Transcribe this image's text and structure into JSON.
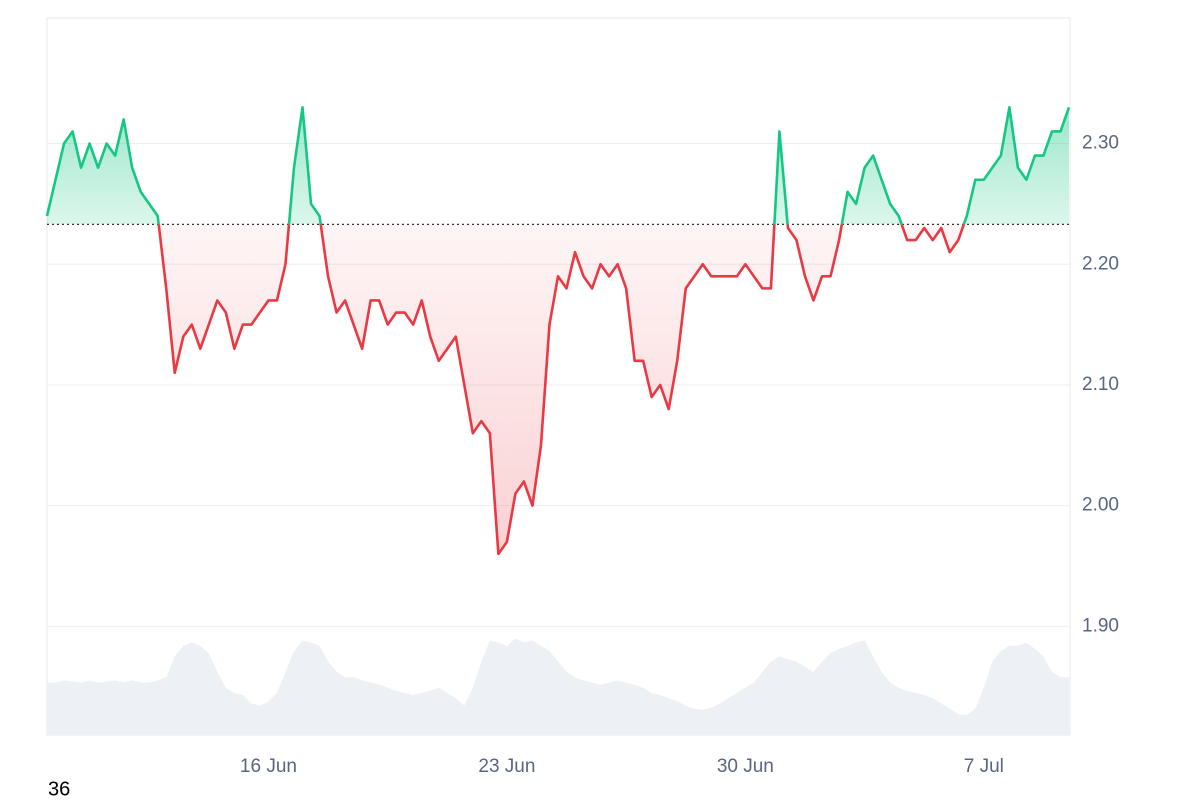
{
  "chart_data": {
    "type": "line",
    "categories": [
      null,
      null,
      null,
      null,
      null,
      null,
      null,
      null,
      null,
      null,
      null,
      null,
      null,
      null,
      null,
      null,
      null,
      null,
      null,
      null,
      null,
      null,
      null,
      null,
      null,
      null,
      "16 Jun",
      null,
      null,
      null,
      null,
      null,
      null,
      null,
      null,
      null,
      null,
      null,
      null,
      null,
      null,
      null,
      null,
      null,
      null,
      null,
      null,
      null,
      null,
      null,
      null,
      null,
      null,
      null,
      "23 Jun",
      null,
      null,
      null,
      null,
      null,
      null,
      null,
      null,
      null,
      null,
      null,
      null,
      null,
      null,
      null,
      null,
      null,
      null,
      null,
      null,
      null,
      null,
      null,
      null,
      null,
      null,
      null,
      "30 Jun",
      null,
      null,
      null,
      null,
      null,
      null,
      null,
      null,
      null,
      null,
      null,
      null,
      null,
      null,
      null,
      null,
      null,
      null,
      null,
      null,
      null,
      null,
      null,
      null,
      null,
      null,
      null,
      "7 Jul",
      null,
      null,
      null,
      null,
      null,
      null,
      null,
      null,
      null,
      null
    ],
    "values": [
      2.24,
      2.27,
      2.3,
      2.31,
      2.28,
      2.3,
      2.28,
      2.3,
      2.29,
      2.32,
      2.28,
      2.26,
      2.25,
      2.24,
      2.18,
      2.11,
      2.14,
      2.15,
      2.13,
      2.15,
      2.17,
      2.16,
      2.13,
      2.15,
      2.15,
      2.16,
      2.17,
      2.17,
      2.2,
      2.28,
      2.33,
      2.25,
      2.24,
      2.19,
      2.16,
      2.17,
      2.15,
      2.13,
      2.17,
      2.17,
      2.15,
      2.16,
      2.16,
      2.15,
      2.17,
      2.14,
      2.12,
      2.13,
      2.14,
      2.1,
      2.06,
      2.07,
      2.06,
      1.96,
      1.97,
      2.01,
      2.02,
      2.0,
      2.05,
      2.15,
      2.19,
      2.18,
      2.21,
      2.19,
      2.18,
      2.2,
      2.19,
      2.2,
      2.18,
      2.12,
      2.12,
      2.09,
      2.1,
      2.08,
      2.12,
      2.18,
      2.19,
      2.2,
      2.19,
      2.19,
      2.19,
      2.19,
      2.2,
      2.19,
      2.18,
      2.18,
      2.31,
      2.23,
      2.22,
      2.19,
      2.17,
      2.19,
      2.19,
      2.22,
      2.26,
      2.25,
      2.28,
      2.29,
      2.27,
      2.25,
      2.24,
      2.22,
      2.22,
      2.23,
      2.22,
      2.23,
      2.21,
      2.22,
      2.24,
      2.27,
      2.27,
      2.28,
      2.29,
      2.33,
      2.28,
      2.27,
      2.29,
      2.29,
      2.31,
      2.31,
      2.33
    ],
    "baseline": 2.233,
    "color_up": "#16c784",
    "color_down": "#ea3943",
    "ylim": [
      1.81,
      2.404
    ],
    "yticks": [
      {
        "value": 1.9,
        "label": "1.90"
      },
      {
        "value": 2.0,
        "label": "2.00"
      },
      {
        "value": 2.1,
        "label": "2.10"
      },
      {
        "value": 2.2,
        "label": "2.20"
      },
      {
        "value": 2.3,
        "label": "2.30"
      }
    ],
    "grid": true,
    "volume": [
      50,
      50,
      52,
      51,
      50,
      52,
      50,
      51,
      52,
      50,
      52,
      50,
      50,
      52,
      55,
      75,
      85,
      88,
      85,
      78,
      60,
      45,
      40,
      38,
      30,
      28,
      32,
      40,
      60,
      80,
      90,
      88,
      85,
      70,
      60,
      55,
      55,
      52,
      50,
      48,
      45,
      42,
      40,
      38,
      40,
      42,
      45,
      40,
      35,
      28,
      45,
      70,
      90,
      88,
      85,
      92,
      88,
      90,
      85,
      80,
      70,
      60,
      55,
      52,
      50,
      48,
      50,
      52,
      50,
      48,
      45,
      40,
      38,
      35,
      32,
      28,
      25,
      24,
      26,
      30,
      35,
      40,
      45,
      50,
      60,
      70,
      75,
      72,
      70,
      65,
      60,
      70,
      78,
      82,
      85,
      88,
      90,
      75,
      60,
      50,
      45,
      42,
      40,
      38,
      35,
      30,
      25,
      20,
      19,
      25,
      45,
      70,
      80,
      85,
      85,
      88,
      82,
      75,
      60,
      55,
      55
    ],
    "vlim": [
      0,
      100
    ],
    "volume_color": "#edf0f4",
    "footer_text": "36"
  }
}
